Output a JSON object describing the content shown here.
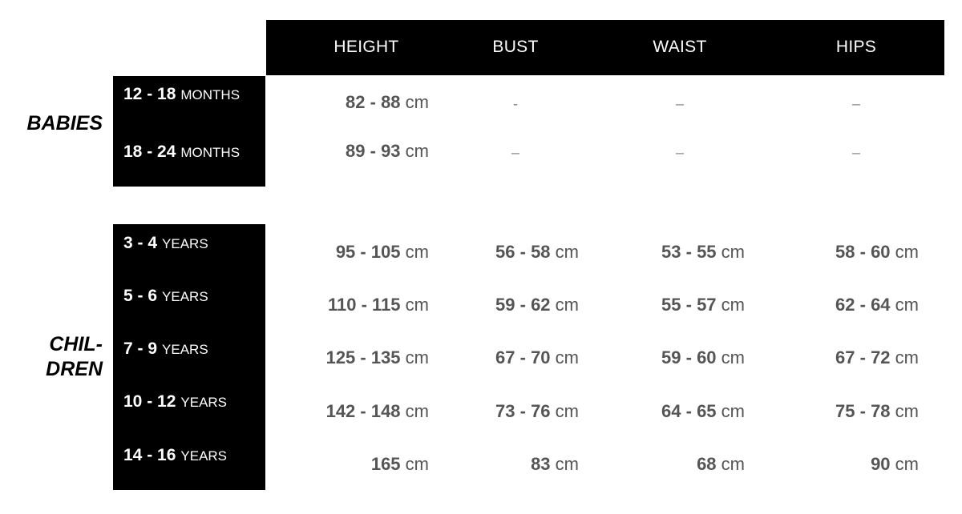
{
  "columns": [
    "HEIGHT",
    "BUST",
    "WAIST",
    "HIPS"
  ],
  "groups": [
    {
      "label": "BABIES",
      "rows": [
        {
          "range": "12 - 18",
          "unit": "MONTHS",
          "values": [
            {
              "num": "82 - 88",
              "unit": "cm"
            },
            {
              "dash": "-"
            },
            {
              "dash": "–"
            },
            {
              "dash": "–"
            }
          ]
        },
        {
          "range": "18 - 24",
          "unit": "MONTHS",
          "values": [
            {
              "num": "89 - 93",
              "unit": "cm"
            },
            {
              "dash": "–"
            },
            {
              "dash": "–"
            },
            {
              "dash": "–"
            }
          ]
        }
      ]
    },
    {
      "label": "CHIL-\nDREN",
      "rows": [
        {
          "range": "3 - 4",
          "unit": "YEARS",
          "values": [
            {
              "num": "95 - 105",
              "unit": "cm"
            },
            {
              "num": "56 - 58",
              "unit": "cm"
            },
            {
              "num": "53 - 55",
              "unit": "cm"
            },
            {
              "num": "58 - 60",
              "unit": "cm"
            }
          ]
        },
        {
          "range": "5 - 6",
          "unit": "YEARS",
          "values": [
            {
              "num": "110 - 115",
              "unit": "cm"
            },
            {
              "num": "59 - 62",
              "unit": "cm"
            },
            {
              "num": "55 - 57",
              "unit": "cm"
            },
            {
              "num": "62 - 64",
              "unit": "cm"
            }
          ]
        },
        {
          "range": "7 - 9",
          "unit": "YEARS",
          "values": [
            {
              "num": "125 - 135",
              "unit": "cm"
            },
            {
              "num": "67 - 70",
              "unit": "cm"
            },
            {
              "num": "59 - 60",
              "unit": "cm"
            },
            {
              "num": "67 - 72",
              "unit": "cm"
            }
          ]
        },
        {
          "range": "10 - 12",
          "unit": "YEARS",
          "values": [
            {
              "num": "142 - 148",
              "unit": "cm"
            },
            {
              "num": "73 - 76",
              "unit": "cm"
            },
            {
              "num": "64 - 65",
              "unit": "cm"
            },
            {
              "num": "75 - 78",
              "unit": "cm"
            }
          ]
        },
        {
          "range": "14 - 16",
          "unit": "YEARS",
          "values": [
            {
              "num": "165",
              "unit": "cm"
            },
            {
              "num": "83",
              "unit": "cm"
            },
            {
              "num": "68",
              "unit": "cm"
            },
            {
              "num": "90",
              "unit": "cm"
            }
          ]
        }
      ]
    }
  ]
}
